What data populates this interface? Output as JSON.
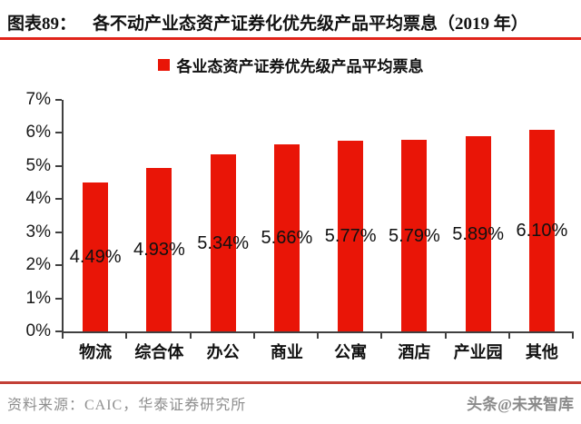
{
  "header": {
    "figure_label": "图表89：",
    "title": "各不动产业态资产证券化优先级产品平均票息（2019 年）"
  },
  "legend": {
    "label": "各业态资产证券优先级产品平均票息"
  },
  "footer": {
    "source": "资料来源：CAIC，华泰证券研究所",
    "watermark": "头条@未来智库"
  },
  "colors": {
    "bar_red": "#e91507",
    "title_underline_red": "#e0241a",
    "footer_divider_red": "#c24036",
    "axis": "#404040",
    "text_black": "#111111",
    "text_gray": "#8e8e8e"
  },
  "chart_data": {
    "type": "bar",
    "title": "各不动产业态资产证券化优先级产品平均票息（2019 年）",
    "legend_entries": [
      "各业态资产证券优先级产品平均票息"
    ],
    "legend_position": "top-center",
    "categories": [
      "物流",
      "综合体",
      "办公",
      "商业",
      "公寓",
      "酒店",
      "产业园",
      "其他"
    ],
    "values": [
      4.49,
      4.93,
      5.34,
      5.66,
      5.77,
      5.79,
      5.89,
      6.1
    ],
    "value_labels": [
      "4.49%",
      "4.93%",
      "5.34%",
      "5.66%",
      "5.77%",
      "5.79%",
      "5.89%",
      "6.10%"
    ],
    "value_label_position": "center-of-bar",
    "xlabel": "",
    "ylabel": "",
    "ylim": [
      0,
      7
    ],
    "ytick_labels": [
      "0%",
      "1%",
      "2%",
      "3%",
      "4%",
      "5%",
      "6%",
      "7%"
    ],
    "grid": false,
    "bar_color": "#e91507"
  }
}
